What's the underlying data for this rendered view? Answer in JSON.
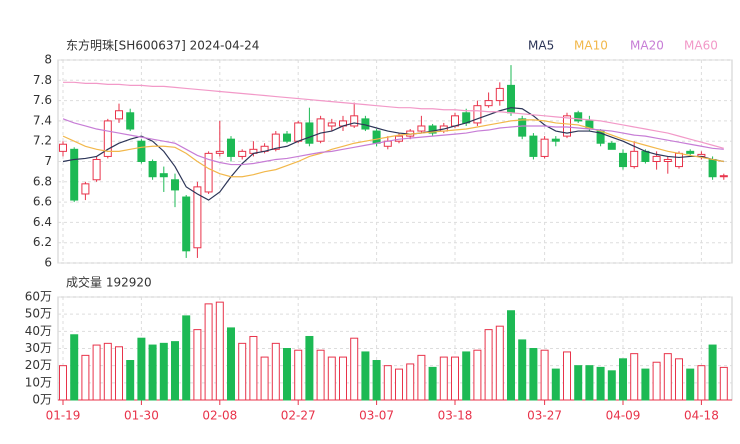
{
  "chart_data": [
    {
      "type": "candlestick",
      "title": "东方明珠[SH600637] 2024-04-24",
      "open": [
        7.1,
        7.12,
        6.68,
        6.82,
        7.05,
        7.42,
        7.48,
        7.2,
        7.0,
        6.88,
        6.82,
        6.65,
        6.15,
        6.7,
        7.08,
        7.22,
        7.05,
        7.08,
        7.1,
        7.12,
        7.27,
        7.2,
        7.38,
        7.2,
        7.35,
        7.35,
        7.35,
        7.42,
        7.3,
        7.15,
        7.2,
        7.25,
        7.3,
        7.35,
        7.3,
        7.35,
        7.48,
        7.38,
        7.55,
        7.6,
        7.75,
        7.42,
        7.25,
        7.05,
        7.22,
        7.25,
        7.48,
        7.4,
        7.3,
        7.18,
        7.08,
        6.95,
        7.1,
        7.0,
        7.0,
        6.95,
        7.1,
        7.05,
        7.02,
        6.85
      ],
      "high": [
        7.2,
        7.14,
        6.8,
        7.05,
        7.42,
        7.57,
        7.52,
        7.22,
        7.02,
        6.95,
        6.88,
        6.67,
        6.8,
        7.1,
        7.4,
        7.25,
        7.12,
        7.2,
        7.18,
        7.3,
        7.3,
        7.4,
        7.53,
        7.45,
        7.42,
        7.45,
        7.58,
        7.45,
        7.32,
        7.25,
        7.28,
        7.32,
        7.45,
        7.37,
        7.38,
        7.48,
        7.52,
        7.6,
        7.68,
        7.78,
        7.95,
        7.45,
        7.28,
        7.25,
        7.25,
        7.48,
        7.5,
        7.45,
        7.32,
        7.2,
        7.12,
        7.2,
        7.12,
        7.1,
        7.05,
        7.1,
        7.12,
        7.1,
        7.05,
        6.88
      ],
      "low": [
        7.05,
        6.6,
        6.62,
        6.8,
        7.03,
        7.38,
        7.3,
        6.98,
        6.82,
        6.7,
        6.55,
        6.05,
        6.05,
        6.68,
        7.05,
        7.0,
        7.02,
        7.05,
        7.08,
        7.1,
        7.18,
        7.18,
        7.15,
        7.18,
        7.3,
        7.3,
        7.33,
        7.3,
        7.15,
        7.12,
        7.18,
        7.22,
        7.28,
        7.25,
        7.28,
        7.33,
        7.35,
        7.35,
        7.53,
        7.55,
        7.45,
        7.22,
        7.02,
        7.03,
        7.15,
        7.23,
        7.38,
        7.3,
        7.15,
        7.12,
        6.92,
        6.93,
        6.98,
        6.92,
        6.88,
        6.93,
        7.05,
        7.02,
        6.82,
        6.82
      ],
      "close": [
        7.17,
        6.62,
        6.78,
        7.02,
        7.4,
        7.5,
        7.32,
        7.0,
        6.85,
        6.85,
        6.72,
        6.12,
        6.75,
        7.08,
        7.1,
        7.05,
        7.1,
        7.12,
        7.15,
        7.27,
        7.2,
        7.38,
        7.18,
        7.42,
        7.38,
        7.4,
        7.45,
        7.32,
        7.18,
        7.2,
        7.25,
        7.3,
        7.35,
        7.28,
        7.35,
        7.45,
        7.38,
        7.55,
        7.6,
        7.72,
        7.48,
        7.25,
        7.05,
        7.22,
        7.2,
        7.45,
        7.4,
        7.33,
        7.18,
        7.12,
        6.95,
        7.1,
        7.0,
        7.05,
        7.02,
        7.08,
        7.08,
        7.07,
        6.85,
        6.86
      ],
      "up_color": "#e8334a",
      "down_color": "#1db954",
      "series": [
        {
          "name": "MA5",
          "color": "#2c3557",
          "values": [
            7.0,
            7.02,
            7.03,
            7.05,
            7.12,
            7.18,
            7.22,
            7.25,
            7.2,
            7.1,
            6.95,
            6.75,
            6.68,
            6.62,
            6.7,
            6.85,
            6.98,
            7.08,
            7.1,
            7.13,
            7.15,
            7.2,
            7.24,
            7.28,
            7.3,
            7.35,
            7.38,
            7.36,
            7.33,
            7.3,
            7.28,
            7.27,
            7.28,
            7.3,
            7.32,
            7.35,
            7.38,
            7.42,
            7.46,
            7.5,
            7.53,
            7.52,
            7.45,
            7.36,
            7.3,
            7.28,
            7.3,
            7.3,
            7.28,
            7.24,
            7.2,
            7.15,
            7.1,
            7.07,
            7.05,
            7.04,
            7.05,
            7.05,
            7.02,
            7.0
          ]
        },
        {
          "name": "MA10",
          "color": "#f2b84b",
          "values": [
            7.25,
            7.2,
            7.15,
            7.12,
            7.1,
            7.1,
            7.12,
            7.14,
            7.15,
            7.15,
            7.14,
            7.08,
            7.0,
            6.93,
            6.88,
            6.85,
            6.85,
            6.87,
            6.9,
            6.92,
            6.96,
            7.0,
            7.05,
            7.08,
            7.12,
            7.15,
            7.18,
            7.2,
            7.22,
            7.24,
            7.26,
            7.27,
            7.28,
            7.29,
            7.3,
            7.31,
            7.32,
            7.34,
            7.36,
            7.38,
            7.4,
            7.41,
            7.41,
            7.4,
            7.38,
            7.37,
            7.36,
            7.33,
            7.3,
            7.26,
            7.22,
            7.19,
            7.16,
            7.13,
            7.1,
            7.08,
            7.06,
            7.04,
            7.02,
            7.0
          ]
        },
        {
          "name": "MA20",
          "color": "#c77dd6",
          "values": [
            7.42,
            7.38,
            7.35,
            7.32,
            7.3,
            7.28,
            7.26,
            7.24,
            7.22,
            7.2,
            7.18,
            7.12,
            7.06,
            7.02,
            6.99,
            6.97,
            6.97,
            6.98,
            7.0,
            7.02,
            7.03,
            7.05,
            7.07,
            7.09,
            7.1,
            7.12,
            7.14,
            7.16,
            7.18,
            7.2,
            7.22,
            7.23,
            7.24,
            7.25,
            7.26,
            7.27,
            7.28,
            7.3,
            7.31,
            7.33,
            7.34,
            7.35,
            7.35,
            7.35,
            7.34,
            7.34,
            7.33,
            7.32,
            7.31,
            7.3,
            7.28,
            7.26,
            7.25,
            7.23,
            7.21,
            7.19,
            7.17,
            7.15,
            7.13,
            7.12
          ]
        },
        {
          "name": "MA60",
          "color": "#f299c8",
          "values": [
            7.78,
            7.78,
            7.77,
            7.77,
            7.76,
            7.76,
            7.75,
            7.75,
            7.74,
            7.74,
            7.73,
            7.72,
            7.71,
            7.7,
            7.69,
            7.68,
            7.67,
            7.66,
            7.65,
            7.64,
            7.63,
            7.62,
            7.61,
            7.6,
            7.59,
            7.58,
            7.57,
            7.56,
            7.55,
            7.54,
            7.53,
            7.53,
            7.52,
            7.52,
            7.51,
            7.51,
            7.5,
            7.5,
            7.49,
            7.49,
            7.48,
            7.47,
            7.46,
            7.45,
            7.44,
            7.43,
            7.42,
            7.41,
            7.4,
            7.38,
            7.36,
            7.34,
            7.32,
            7.3,
            7.28,
            7.25,
            7.22,
            7.19,
            7.16,
            7.13
          ]
        }
      ],
      "ylim": [
        6,
        8
      ],
      "yticks": [
        6,
        6.2,
        6.4,
        6.6,
        6.8,
        7,
        7.2,
        7.4,
        7.6,
        7.8,
        8
      ],
      "grid": true
    },
    {
      "type": "bar",
      "title": "成交量 192920",
      "categories": [
        "01-19",
        null,
        null,
        null,
        null,
        null,
        null,
        "01-30",
        null,
        null,
        null,
        null,
        null,
        null,
        "02-08",
        null,
        null,
        null,
        null,
        null,
        null,
        "02-27",
        null,
        null,
        null,
        null,
        null,
        null,
        "03-07",
        null,
        null,
        null,
        null,
        null,
        null,
        "03-18",
        null,
        null,
        null,
        null,
        null,
        null,
        null,
        "03-27",
        null,
        null,
        null,
        null,
        null,
        null,
        "04-09",
        null,
        null,
        null,
        null,
        null,
        null,
        "04-18",
        null,
        null
      ],
      "values": [
        20,
        38,
        26,
        32,
        33,
        31,
        23,
        36,
        32,
        33,
        34,
        49,
        41,
        56,
        57,
        42,
        33,
        37,
        25,
        33,
        30,
        29,
        37,
        29,
        25,
        25,
        36,
        28,
        23,
        20,
        18,
        21,
        26,
        19,
        25,
        25,
        28,
        29,
        41,
        43,
        52,
        35,
        30,
        29,
        18,
        28,
        20,
        20,
        19,
        17,
        24,
        27,
        18,
        22,
        27,
        24,
        18,
        20,
        32,
        19
      ],
      "ylim": [
        0,
        60
      ],
      "yticks": [
        {
          "value": 0,
          "label": "0万"
        },
        {
          "value": 10,
          "label": "10万"
        },
        {
          "value": 20,
          "label": "20万"
        },
        {
          "value": 30,
          "label": "30万"
        },
        {
          "value": 40,
          "label": "40万"
        },
        {
          "value": 50,
          "label": "50万"
        },
        {
          "value": 60,
          "label": "60万"
        }
      ],
      "grid": true
    }
  ]
}
